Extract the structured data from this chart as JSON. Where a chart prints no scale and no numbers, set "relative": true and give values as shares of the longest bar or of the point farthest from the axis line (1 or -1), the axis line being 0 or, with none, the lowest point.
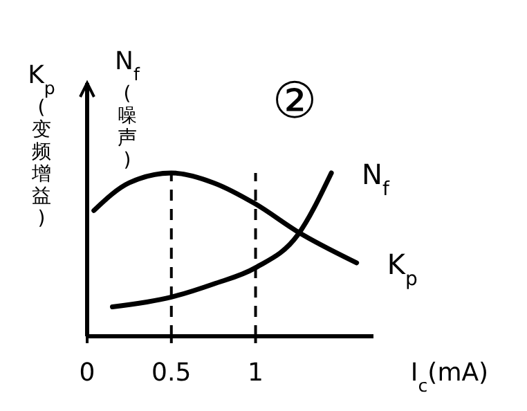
{
  "chart_data": {
    "type": "line",
    "relative": true,
    "ylabel": "K$_{p}$(变频增益)",
    "xlabel": "I$_{c}$(mA)",
    "annotations": [
      "N$_{f}$(噪声)",
      "②"
    ],
    "xlim": [
      0,
      1.7
    ],
    "xticks": [
      0,
      0.5,
      1
    ],
    "marker": "none",
    "line_style": "solid",
    "ref_lines": [
      {
        "axis": "x",
        "value": 0.5,
        "line_style": "dashed"
      },
      {
        "axis": "x",
        "value": 1,
        "line_style": "dashed"
      }
    ],
    "series": [
      {
        "name": "N$_{f}$",
        "color": "#000000",
        "x": [
          0.15,
          0.5,
          0.75,
          1.0,
          1.25,
          1.45
        ],
        "values": [
          0.18,
          0.24,
          0.32,
          0.42,
          0.62,
          1.0
        ]
      },
      {
        "name": "K$_{p}$",
        "color": "#000000",
        "x": [
          0.04,
          0.25,
          0.5,
          0.75,
          1.0,
          1.25,
          1.6
        ],
        "values": [
          0.77,
          0.94,
          1.0,
          0.94,
          0.81,
          0.64,
          0.45
        ]
      }
    ]
  }
}
